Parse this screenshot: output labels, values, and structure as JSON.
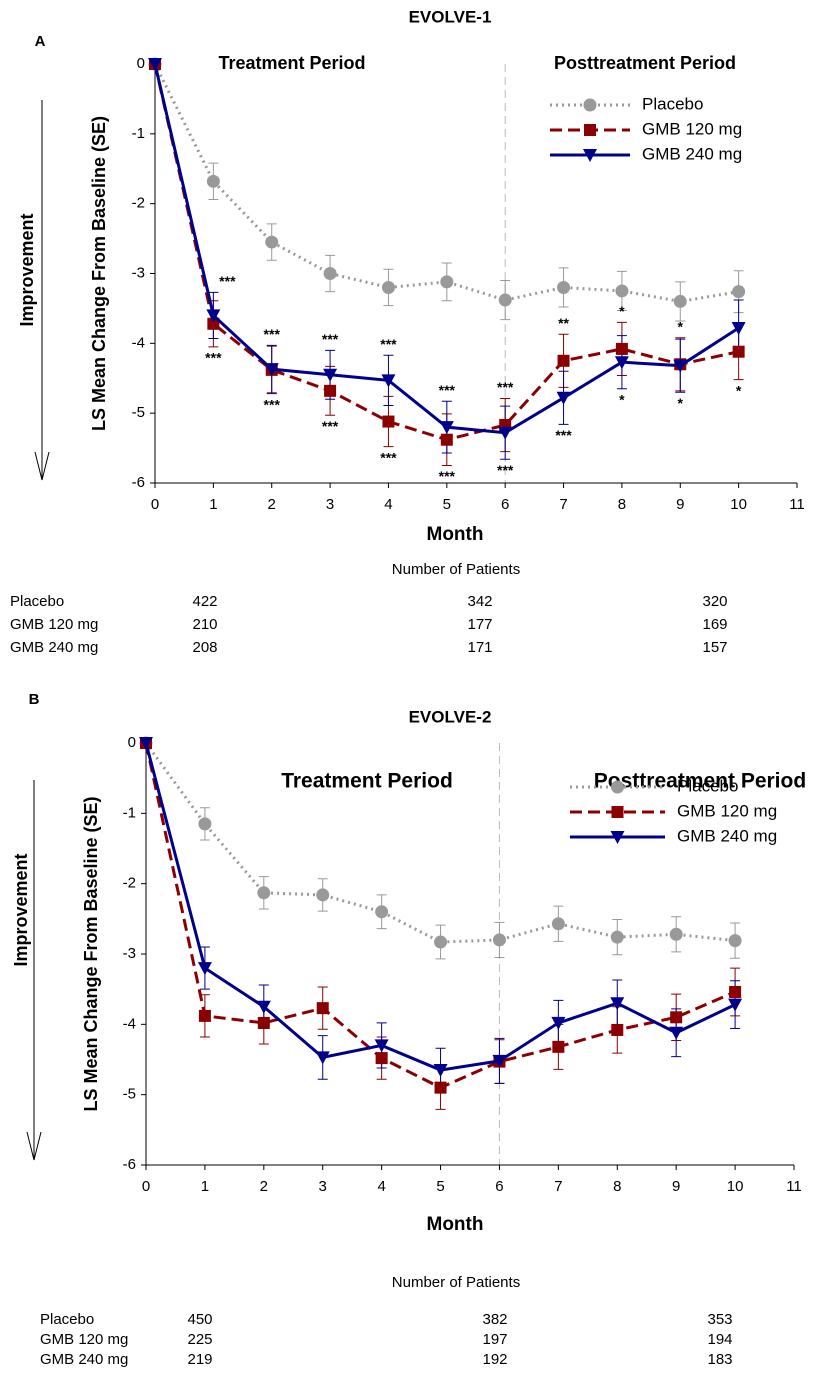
{
  "chart_data": [
    {
      "type": "line",
      "panel_label": "A",
      "title": "EVOLVE-1",
      "x": [
        0,
        1,
        2,
        3,
        4,
        5,
        6,
        7,
        8,
        9,
        10
      ],
      "xlim": [
        0,
        11
      ],
      "xticks": [
        0,
        1,
        2,
        3,
        4,
        5,
        6,
        7,
        8,
        9,
        10,
        11
      ],
      "ylim": [
        -6,
        0
      ],
      "yticks": [
        -6,
        -5,
        -4,
        -3,
        -2,
        -1,
        0
      ],
      "xlabel": "Month",
      "ylabel": "LS Mean Change From Baseline (SE)",
      "direction_label": "Improvement",
      "period_labels": [
        "Treatment Period",
        "Posttreatment Period"
      ],
      "period_boundary": 6,
      "legend": "upper right",
      "series": [
        {
          "name": "Placebo",
          "color": "#999999",
          "line_style": "dotted",
          "marker": "circle",
          "values": [
            0,
            -1.68,
            -2.55,
            -3.0,
            -3.2,
            -3.12,
            -3.38,
            -3.2,
            -3.25,
            -3.4,
            -3.26
          ],
          "errors": [
            0,
            0.26,
            0.26,
            0.26,
            0.26,
            0.27,
            0.28,
            0.28,
            0.28,
            0.28,
            0.3
          ]
        },
        {
          "name": "GMB 120 mg",
          "color": "#8b0000",
          "line_style": "dashed",
          "marker": "square",
          "values": [
            0,
            -3.72,
            -4.38,
            -4.68,
            -5.12,
            -5.38,
            -5.17,
            -4.25,
            -4.08,
            -4.3,
            -4.12
          ],
          "errors": [
            0,
            0.33,
            0.34,
            0.35,
            0.36,
            0.37,
            0.38,
            0.38,
            0.38,
            0.38,
            0.4
          ],
          "significance": [
            null,
            "***",
            "***",
            "***",
            "***",
            "***",
            "***",
            "**",
            "*",
            "*",
            "*"
          ]
        },
        {
          "name": "GMB 240 mg",
          "color": "#00008b",
          "line_style": "solid",
          "marker": "triangle-down",
          "values": [
            0,
            -3.6,
            -4.37,
            -4.45,
            -4.53,
            -5.2,
            -5.28,
            -4.78,
            -4.27,
            -4.32,
            -3.78
          ],
          "errors": [
            0,
            0.33,
            0.34,
            0.35,
            0.36,
            0.37,
            0.38,
            0.38,
            0.38,
            0.38,
            0.4
          ],
          "significance": [
            null,
            "***",
            "***",
            "***",
            "***",
            "***",
            "***",
            "***",
            "*",
            "*",
            null
          ]
        }
      ],
      "patients": {
        "title": "Number of Patients",
        "rows": [
          {
            "name": "Placebo",
            "counts": [
              422,
              342,
              320
            ]
          },
          {
            "name": "GMB 120 mg",
            "counts": [
              210,
              177,
              169
            ]
          },
          {
            "name": "GMB 240 mg",
            "counts": [
              208,
              171,
              157
            ]
          }
        ]
      }
    },
    {
      "type": "line",
      "panel_label": "B",
      "title": "EVOLVE-2",
      "x": [
        0,
        1,
        2,
        3,
        4,
        5,
        6,
        7,
        8,
        9,
        10
      ],
      "xlim": [
        0,
        11
      ],
      "xticks": [
        0,
        1,
        2,
        3,
        4,
        5,
        6,
        7,
        8,
        9,
        10,
        11
      ],
      "ylim": [
        -6,
        0
      ],
      "yticks": [
        -6,
        -5,
        -4,
        -3,
        -2,
        -1,
        0
      ],
      "xlabel": "Month",
      "ylabel": "LS Mean Change From Baseline (SE)",
      "direction_label": "Improvement",
      "period_labels": [
        "Treatment Period",
        "Posttreatment Period"
      ],
      "period_boundary": 6,
      "legend": "upper right",
      "series": [
        {
          "name": "Placebo",
          "color": "#999999",
          "line_style": "dotted",
          "marker": "circle",
          "values": [
            0,
            -1.15,
            -2.13,
            -2.16,
            -2.4,
            -2.83,
            -2.8,
            -2.57,
            -2.76,
            -2.72,
            -2.81
          ],
          "errors": [
            0,
            0.23,
            0.23,
            0.23,
            0.24,
            0.24,
            0.25,
            0.25,
            0.25,
            0.25,
            0.25
          ]
        },
        {
          "name": "GMB 120 mg",
          "color": "#8b0000",
          "line_style": "dashed",
          "marker": "square",
          "values": [
            0,
            -3.88,
            -3.98,
            -3.77,
            -4.48,
            -4.9,
            -4.53,
            -4.32,
            -4.08,
            -3.9,
            -3.54
          ],
          "errors": [
            0,
            0.3,
            0.3,
            0.3,
            0.3,
            0.31,
            0.31,
            0.32,
            0.33,
            0.33,
            0.34
          ]
        },
        {
          "name": "GMB 240 mg",
          "color": "#00008b",
          "line_style": "solid",
          "marker": "triangle-down",
          "values": [
            0,
            -3.2,
            -3.75,
            -4.47,
            -4.3,
            -4.65,
            -4.52,
            -3.98,
            -3.7,
            -4.12,
            -3.72
          ],
          "errors": [
            0,
            0.3,
            0.31,
            0.31,
            0.32,
            0.31,
            0.32,
            0.32,
            0.33,
            0.34,
            0.34
          ]
        }
      ],
      "patients": {
        "title": "Number of Patients",
        "rows": [
          {
            "name": "Placebo",
            "counts": [
              450,
              382,
              353
            ]
          },
          {
            "name": "GMB 120 mg",
            "counts": [
              225,
              197,
              194
            ]
          },
          {
            "name": "GMB 240 mg",
            "counts": [
              219,
              192,
              183
            ]
          }
        ]
      }
    }
  ]
}
